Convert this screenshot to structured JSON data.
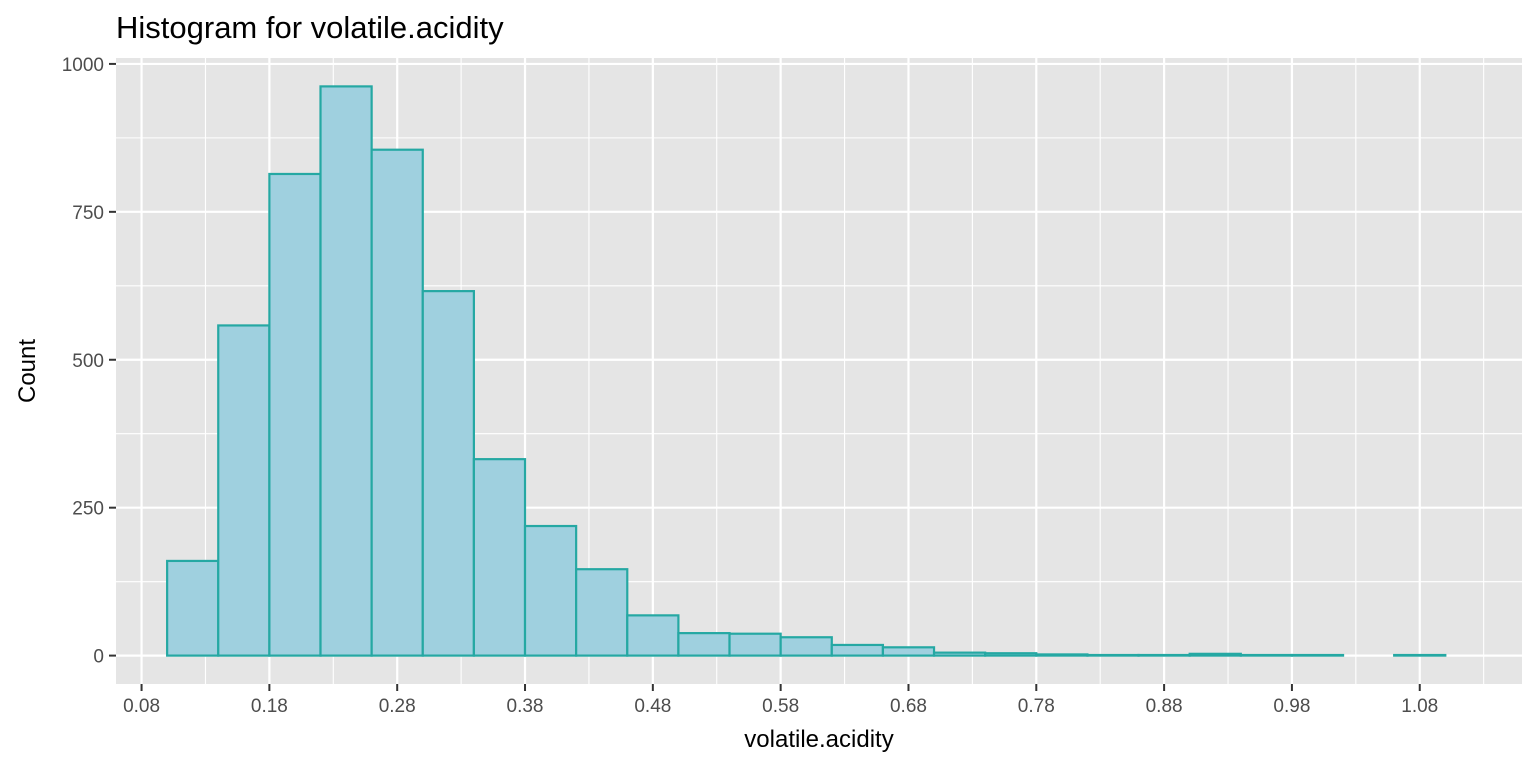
{
  "chart_data": {
    "type": "bar",
    "title": "Histogram for volatile.acidity",
    "xlabel": "volatile.acidity",
    "ylabel": "Count",
    "bin_width": 0.04,
    "bins": [
      {
        "x0": 0.1,
        "x1": 0.14,
        "count": 160
      },
      {
        "x0": 0.14,
        "x1": 0.18,
        "count": 558
      },
      {
        "x0": 0.18,
        "x1": 0.22,
        "count": 814
      },
      {
        "x0": 0.22,
        "x1": 0.26,
        "count": 962
      },
      {
        "x0": 0.26,
        "x1": 0.3,
        "count": 855
      },
      {
        "x0": 0.3,
        "x1": 0.34,
        "count": 616
      },
      {
        "x0": 0.34,
        "x1": 0.38,
        "count": 332
      },
      {
        "x0": 0.38,
        "x1": 0.42,
        "count": 219
      },
      {
        "x0": 0.42,
        "x1": 0.46,
        "count": 146
      },
      {
        "x0": 0.46,
        "x1": 0.5,
        "count": 68
      },
      {
        "x0": 0.5,
        "x1": 0.54,
        "count": 38
      },
      {
        "x0": 0.54,
        "x1": 0.58,
        "count": 37
      },
      {
        "x0": 0.58,
        "x1": 0.62,
        "count": 31
      },
      {
        "x0": 0.62,
        "x1": 0.66,
        "count": 18
      },
      {
        "x0": 0.66,
        "x1": 0.7,
        "count": 14
      },
      {
        "x0": 0.7,
        "x1": 0.74,
        "count": 5
      },
      {
        "x0": 0.74,
        "x1": 0.78,
        "count": 4
      },
      {
        "x0": 0.78,
        "x1": 0.82,
        "count": 2
      },
      {
        "x0": 0.82,
        "x1": 0.86,
        "count": 1
      },
      {
        "x0": 0.86,
        "x1": 0.9,
        "count": 1
      },
      {
        "x0": 0.9,
        "x1": 0.94,
        "count": 3
      },
      {
        "x0": 0.94,
        "x1": 0.98,
        "count": 1
      },
      {
        "x0": 0.98,
        "x1": 1.02,
        "count": 1
      },
      {
        "x0": 1.02,
        "x1": 1.06,
        "count": 0
      },
      {
        "x0": 1.06,
        "x1": 1.1,
        "count": 1
      }
    ],
    "xticks": [
      "0.08",
      "0.18",
      "0.28",
      "0.38",
      "0.48",
      "0.58",
      "0.68",
      "0.78",
      "0.88",
      "0.98",
      "1.08"
    ],
    "yticks": [
      "0",
      "250",
      "500",
      "750",
      "1000"
    ],
    "xlim": [
      0.06,
      1.16
    ],
    "ylim": [
      -48,
      1010
    ],
    "grid": true,
    "colors": {
      "panel": "#e5e5e5",
      "grid": "#ffffff",
      "bar_fill": "#9fd0df",
      "bar_outline": "#25a8a3",
      "tick_text": "#4d4d4d"
    }
  }
}
